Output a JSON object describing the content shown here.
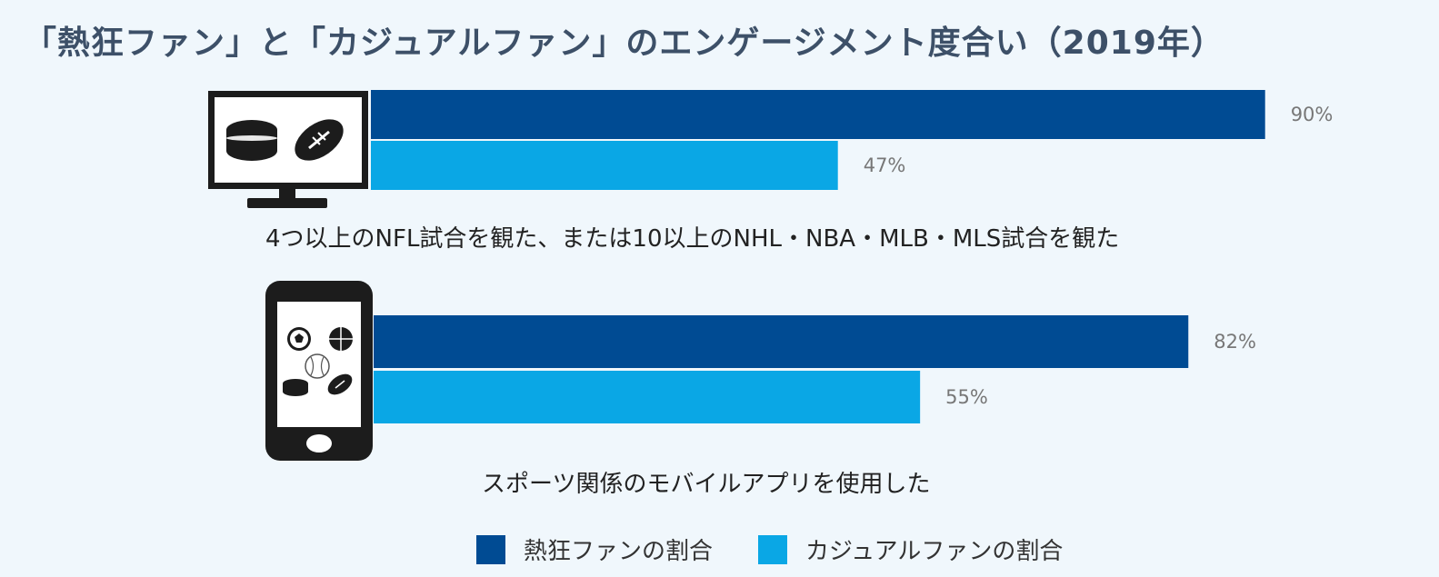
{
  "title": "「熱狂ファン」と「カジュアルファン」のエンゲージメント度合い（2019年）",
  "chart_data": {
    "type": "bar",
    "orientation": "horizontal",
    "categories": [
      "4つ以上のNFL試合を観た、または10以上のNHL・NBA・MLB・MLS試合を観た",
      "スポーツ関係のモバイルアプリを使用した"
    ],
    "category_icons": [
      "tv-monitor-icon",
      "smartphone-icon"
    ],
    "series": [
      {
        "name": "熱狂ファンの割合",
        "values": [
          90,
          82
        ],
        "color": "#004b93"
      },
      {
        "name": "カジュアルファンの割合",
        "values": [
          47,
          55
        ],
        "color": "#0aa7e5"
      }
    ],
    "value_labels": [
      [
        "90%",
        "82%"
      ],
      [
        "47%",
        "55%"
      ]
    ],
    "xlim": [
      0,
      100
    ],
    "grid": false,
    "legend_position": "bottom"
  }
}
